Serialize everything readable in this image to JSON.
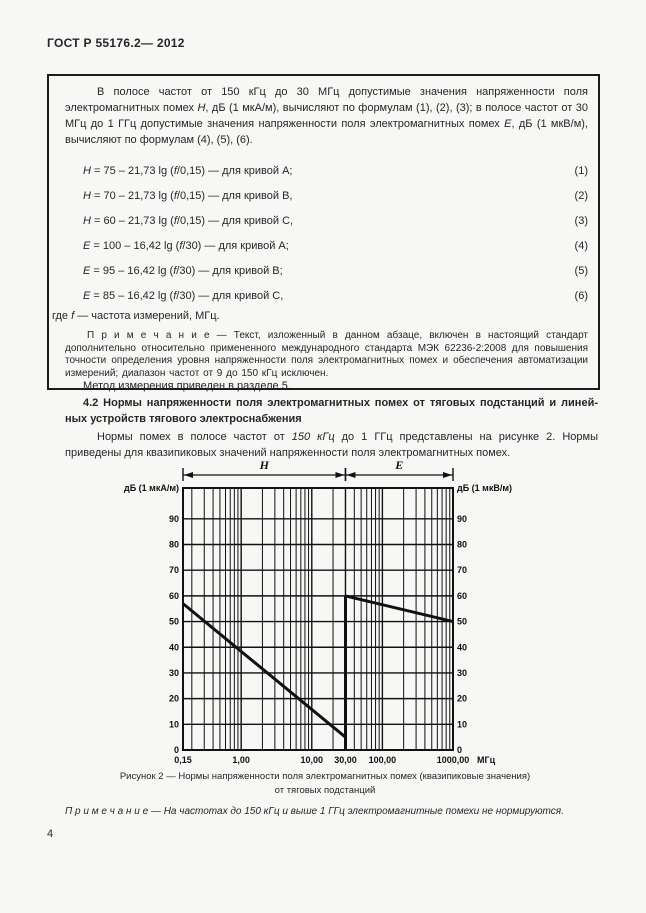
{
  "page": {
    "header": "ГОСТ Р 55176.2— 2012",
    "page_number": "4"
  },
  "box": {
    "intro": {
      "seg0": "В полосе частот от 150 кГц до 30 МГц допустимые значения напряженности поля электромагнитных помех ",
      "seg1": "Н",
      "seg2": ", дБ (1 мкА/м), вычисляют по формулам (1), (2), (3); в полосе частот от 30 МГц до 1 ГГц допустимые значения напряженности поля электромагнитных помех ",
      "seg3": "Е",
      "seg4": ", дБ (1 мкВ/м), вычисляют по формулам (4), (5), (6)."
    },
    "formulas": [
      {
        "var": "H",
        "mid": " = 75 – 21,73 lg (",
        "f": "f",
        "tail": "/0,15) — для кривой А;",
        "num": "(1)"
      },
      {
        "var": "H",
        "mid": " = 70 – 21,73 lg (",
        "f": "f",
        "tail": "/0,15) — для кривой В,",
        "num": "(2)"
      },
      {
        "var": "H",
        "mid": " = 60 – 21,73 lg (",
        "f": "f",
        "tail": "/0,15) — для кривой С,",
        "num": "(3)"
      },
      {
        "var": "E",
        "mid": " = 100 – 16,42 lg (",
        "f": "f",
        "tail": "/30) — для кривой А;",
        "num": "(4)"
      },
      {
        "var": "E",
        "mid": " = 95 – 16,42 lg (",
        "f": "f",
        "tail": "/30) — для кривой В;",
        "num": "(5)"
      },
      {
        "var": "E",
        "mid": " = 85 – 16,42 lg (",
        "f": "f",
        "tail": "/30) — для кривой С,",
        "num": "(6)"
      }
    ],
    "where": {
      "seg0": "где ",
      "seg1": "f",
      "seg2": " — частота измерений, МГц."
    },
    "note": "П р и м е ч а н и е — Текст, изложенный в данном абзаце, включен в настоящий стандарт дополнительно относительно примененного международного стандарта МЭК  62236-2:2008 для повышения точности определения уровня напряженности поля электромагнитных помех и обеспечения автоматизации измерений; диапазон частот от 9 до 150 кГц исключен."
  },
  "body": {
    "method_line": "Метод измерения приведен в разделе 5.",
    "section_heading_line1": "4.2 Нормы напряженности поля электромагнитных помех от тяговых подстанций и линей-",
    "section_heading_line2": "ных устройств тягового электроснабжения",
    "norms": {
      "seg0": "Нормы помех в полосе частот от ",
      "seg1": "150 кГц",
      "seg2": " до 1 ГГц представлены на рисунке 2. Нормы приведены для квазипиковых значений напряженности поля электромагнитных помех."
    }
  },
  "figure": {
    "caption_line1": "Рисунок 2 — Нормы напряженности поля электромагнитных помех (квазипиковые значения)",
    "caption_line2": "от тяговых подстанций",
    "note": "П р и м е ч а н и е — На частотах до 150 кГц и выше 1 ГГц электромагнитные помехи не нормируются."
  },
  "chart_data": {
    "type": "line",
    "x_scale": "log",
    "x_min": 0.15,
    "x_max": 1000,
    "y_min": 0,
    "y_max": 102,
    "grid": "on",
    "y_gridlines": [
      10,
      20,
      30,
      40,
      50,
      60,
      70,
      80,
      90
    ],
    "y_tick_labels": [
      {
        "v": 0,
        "label": "0"
      },
      {
        "v": 10,
        "label": "10"
      },
      {
        "v": 20,
        "label": "20"
      },
      {
        "v": 30,
        "label": "30"
      },
      {
        "v": 40,
        "label": "40"
      },
      {
        "v": 50,
        "label": "50"
      },
      {
        "v": 60,
        "label": "60"
      },
      {
        "v": 70,
        "label": "70"
      },
      {
        "v": 80,
        "label": "80"
      },
      {
        "v": 90,
        "label": "90"
      }
    ],
    "x_major_ticks": [
      {
        "v": 0.15,
        "label": "0,15"
      },
      {
        "v": 1,
        "label": "1,00"
      },
      {
        "v": 10,
        "label": "10,00"
      },
      {
        "v": 30,
        "label": "30,00"
      },
      {
        "v": 100,
        "label": "100,00"
      },
      {
        "v": 1000,
        "label": "1000,00"
      }
    ],
    "x_minor_ticks": [
      0.2,
      0.3,
      0.4,
      0.5,
      0.6,
      0.7,
      0.8,
      0.9,
      2,
      3,
      4,
      5,
      6,
      7,
      8,
      9,
      20,
      40,
      50,
      60,
      70,
      80,
      90,
      200,
      300,
      400,
      500,
      600,
      700,
      800,
      900
    ],
    "x_unit_label": "МГц",
    "left_axis_title": "дБ (1 мкА/м)",
    "right_axis_title": "дБ (1 мкВ/м)",
    "sections": [
      {
        "label": "H",
        "from": 0.15,
        "to": 30
      },
      {
        "label": "E",
        "from": 30,
        "to": 1000
      }
    ],
    "series": [
      {
        "name": "H-norm",
        "points": [
          [
            0.15,
            57
          ],
          [
            30,
            5
          ]
        ]
      },
      {
        "name": "boundary-jump",
        "points": [
          [
            30,
            0
          ],
          [
            30,
            60
          ]
        ]
      },
      {
        "name": "E-norm",
        "points": [
          [
            30,
            60
          ],
          [
            1000,
            50
          ]
        ]
      }
    ],
    "line_color": "#111111",
    "text_color": "#262626",
    "page_background": "#f7f7f6"
  }
}
